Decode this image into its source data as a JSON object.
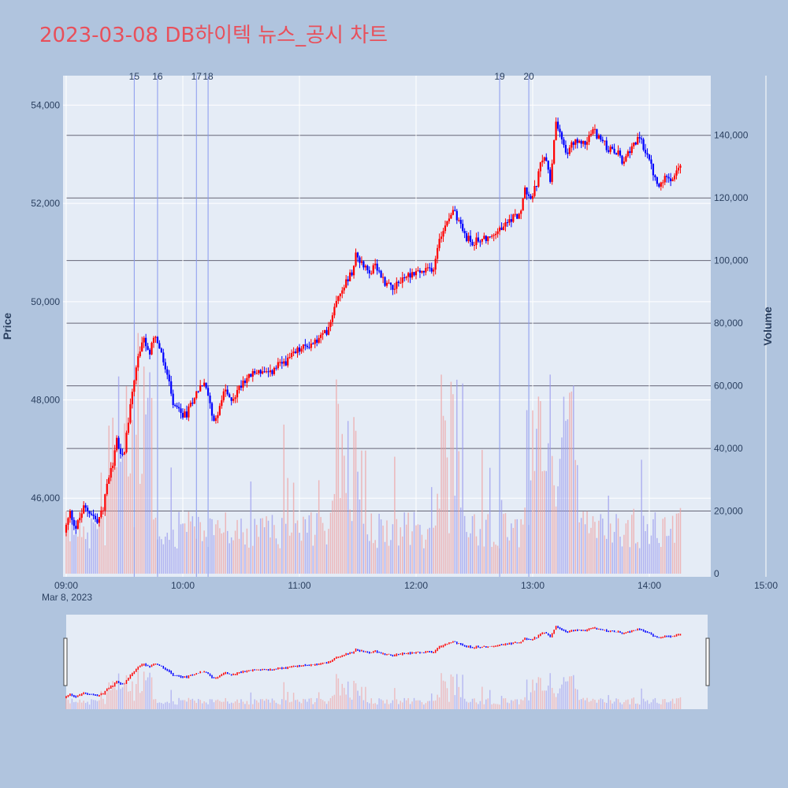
{
  "title": "2023-03-08 DB하이텍 뉴스_공시 차트",
  "chart_data": {
    "type": "candlestick",
    "date_label": "Mar 8, 2023",
    "y_title": "Price",
    "y2_title": "Volume",
    "x_ticks": [
      "09:00",
      "10:00",
      "11:00",
      "12:00",
      "13:00",
      "14:00",
      "15:00"
    ],
    "y_ticks": [
      46000,
      48000,
      50000,
      52000,
      54000
    ],
    "y2_ticks": [
      0,
      20000,
      40000,
      60000,
      80000,
      100000,
      120000,
      140000
    ],
    "y_range": [
      44400,
      54600
    ],
    "y2_range": [
      0,
      150000
    ],
    "x_range_minutes": [
      0,
      330
    ],
    "colors": {
      "up": "#ff0000",
      "down": "#0000ff",
      "up_volume": "#f0a0a0",
      "down_volume": "#9999ee",
      "plot_bg": "#e5ecf6",
      "event_line": "#8899ee"
    },
    "events": [
      {
        "label": "15",
        "minute": 35
      },
      {
        "label": "16",
        "minute": 47
      },
      {
        "label": "17",
        "minute": 67
      },
      {
        "label": "18",
        "minute": 73
      },
      {
        "label": "19",
        "minute": 223
      },
      {
        "label": "20",
        "minute": 238
      }
    ],
    "price_anchors": [
      [
        0,
        45300
      ],
      [
        3,
        45700
      ],
      [
        6,
        45400
      ],
      [
        10,
        45800
      ],
      [
        14,
        45700
      ],
      [
        17,
        45500
      ],
      [
        20,
        45800
      ],
      [
        22,
        46300
      ],
      [
        25,
        46700
      ],
      [
        27,
        47200
      ],
      [
        29,
        46900
      ],
      [
        31,
        47000
      ],
      [
        33,
        47600
      ],
      [
        35,
        48200
      ],
      [
        38,
        48900
      ],
      [
        41,
        49200
      ],
      [
        44,
        48900
      ],
      [
        46,
        49300
      ],
      [
        48,
        49200
      ],
      [
        50,
        48900
      ],
      [
        53,
        48500
      ],
      [
        56,
        47900
      ],
      [
        60,
        47700
      ],
      [
        63,
        47700
      ],
      [
        66,
        48000
      ],
      [
        70,
        48300
      ],
      [
        72,
        48300
      ],
      [
        75,
        48000
      ],
      [
        77,
        47500
      ],
      [
        80,
        47900
      ],
      [
        83,
        48200
      ],
      [
        85,
        48000
      ],
      [
        88,
        48100
      ],
      [
        92,
        48400
      ],
      [
        96,
        48500
      ],
      [
        100,
        48600
      ],
      [
        105,
        48500
      ],
      [
        110,
        48700
      ],
      [
        115,
        48800
      ],
      [
        120,
        49000
      ],
      [
        125,
        49100
      ],
      [
        130,
        49200
      ],
      [
        135,
        49400
      ],
      [
        140,
        50000
      ],
      [
        143,
        50300
      ],
      [
        145,
        50400
      ],
      [
        148,
        50600
      ],
      [
        150,
        51000
      ],
      [
        153,
        50800
      ],
      [
        156,
        50600
      ],
      [
        160,
        50700
      ],
      [
        165,
        50400
      ],
      [
        170,
        50300
      ],
      [
        175,
        50500
      ],
      [
        180,
        50600
      ],
      [
        185,
        50600
      ],
      [
        190,
        50700
      ],
      [
        193,
        51300
      ],
      [
        197,
        51700
      ],
      [
        200,
        51900
      ],
      [
        203,
        51600
      ],
      [
        207,
        51300
      ],
      [
        210,
        51200
      ],
      [
        215,
        51300
      ],
      [
        220,
        51300
      ],
      [
        225,
        51500
      ],
      [
        230,
        51700
      ],
      [
        235,
        51800
      ],
      [
        237,
        52300
      ],
      [
        240,
        52100
      ],
      [
        243,
        52400
      ],
      [
        245,
        52800
      ],
      [
        248,
        52900
      ],
      [
        250,
        52500
      ],
      [
        253,
        53600
      ],
      [
        255,
        53400
      ],
      [
        258,
        53000
      ],
      [
        261,
        53200
      ],
      [
        264,
        53300
      ],
      [
        268,
        53200
      ],
      [
        272,
        53500
      ],
      [
        276,
        53300
      ],
      [
        280,
        53100
      ],
      [
        285,
        53000
      ],
      [
        288,
        52800
      ],
      [
        292,
        53200
      ],
      [
        296,
        53300
      ],
      [
        300,
        53000
      ],
      [
        303,
        52600
      ],
      [
        306,
        52300
      ],
      [
        310,
        52600
      ],
      [
        313,
        52500
      ],
      [
        316,
        52700
      ]
    ],
    "volume_note": "1-minute bars, volume 0-90000 shown as background bars"
  }
}
